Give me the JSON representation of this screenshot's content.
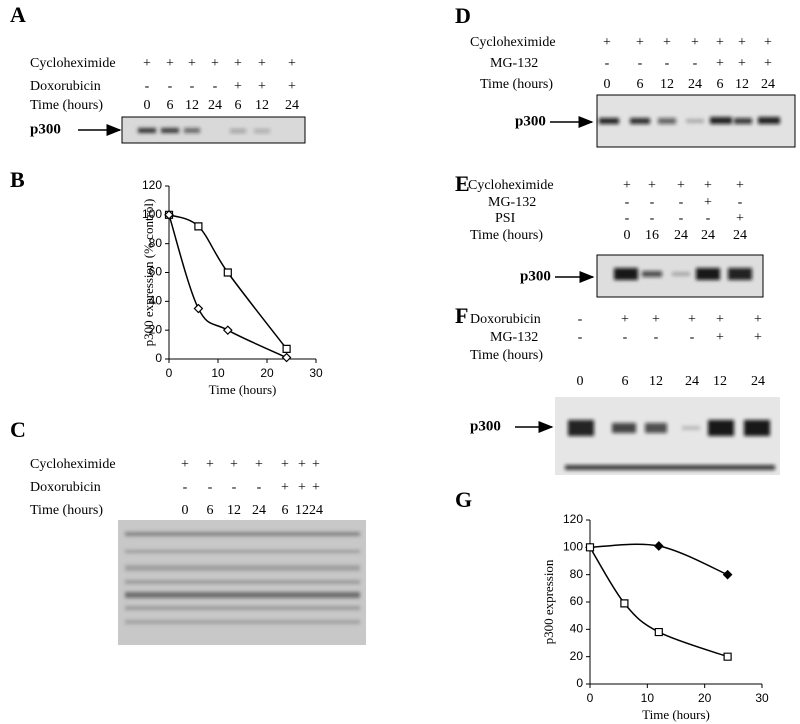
{
  "panel_labels": [
    "A",
    "B",
    "C",
    "D",
    "E",
    "F",
    "G"
  ],
  "panels": {
    "A": {
      "rows": [
        {
          "label": "Cycloheximide",
          "cells": [
            "+",
            "+",
            "+",
            "+",
            "+",
            "+",
            "+"
          ]
        },
        {
          "label": "Doxorubicin",
          "cells": [
            "-",
            "-",
            "-",
            "-",
            "+",
            "+",
            "+"
          ]
        },
        {
          "label": "Time (hours)",
          "cells": [
            0,
            6,
            12,
            24,
            6,
            12,
            24
          ]
        }
      ],
      "band_label": "p300"
    },
    "C": {
      "rows": [
        {
          "label": "Cycloheximide",
          "cells": [
            "+",
            "+",
            "+",
            "+",
            "+",
            "+",
            "+"
          ]
        },
        {
          "label": "Doxorubicin",
          "cells": [
            "-",
            "-",
            "-",
            "-",
            "+",
            "+",
            "+"
          ]
        },
        {
          "label": "Time (hours)",
          "cells": [
            0,
            6,
            12,
            24,
            6,
            12,
            24
          ]
        }
      ]
    },
    "D": {
      "rows": [
        {
          "label": "Cycloheximide",
          "cells": [
            "+",
            "+",
            "+",
            "+",
            "+",
            "+",
            "+"
          ]
        },
        {
          "label": "MG-132",
          "cells": [
            "-",
            "-",
            "-",
            "-",
            "+",
            "+",
            "+"
          ]
        },
        {
          "label": "Time (hours)",
          "cells": [
            0,
            6,
            12,
            24,
            6,
            12,
            24
          ]
        }
      ],
      "band_label": "p300"
    },
    "E": {
      "rows": [
        {
          "label": "Cycloheximide",
          "cells": [
            "+",
            "+",
            "+",
            "+",
            "+"
          ]
        },
        {
          "label": "MG-132",
          "cells": [
            "-",
            "-",
            "-",
            "+",
            "-"
          ]
        },
        {
          "label": "PSI",
          "cells": [
            "-",
            "-",
            "-",
            "-",
            "+"
          ]
        },
        {
          "label": "Time (hours)",
          "cells": [
            0,
            16,
            24,
            24,
            24
          ]
        }
      ],
      "band_label": "p300"
    },
    "F": {
      "rows": [
        {
          "label": "Doxorubicin",
          "cells": [
            "-",
            "+",
            "+",
            "+",
            "+",
            "+"
          ]
        },
        {
          "label": "MG-132",
          "cells": [
            "-",
            "-",
            "-",
            "-",
            "+",
            "+"
          ]
        },
        {
          "label": "Time (hours)",
          "cells": [
            0,
            6,
            12,
            24,
            12,
            24
          ]
        }
      ],
      "band_label": "p300"
    }
  },
  "chart_data": [
    {
      "type": "line",
      "panel": "B",
      "x_label": "Time (hours)",
      "y_label": "p300 expression (% control)",
      "xlim": [
        0,
        30
      ],
      "xticks": [
        0,
        10,
        20,
        30
      ],
      "ylim": [
        0,
        120
      ],
      "yticks": [
        0,
        20,
        40,
        60,
        80,
        100,
        120
      ],
      "series": [
        {
          "color": "#000000",
          "marker": "square",
          "marker_fill": "none",
          "x": [
            0,
            6,
            12,
            24
          ],
          "values": [
            100,
            92,
            60,
            7
          ]
        },
        {
          "color": "#000000",
          "marker": "diamond",
          "marker_fill": "none",
          "x": [
            0,
            6,
            12,
            24
          ],
          "values": [
            100,
            35,
            20,
            1
          ]
        }
      ]
    },
    {
      "type": "line",
      "panel": "G",
      "x_label": "Time (hours)",
      "y_label": "p300 expression",
      "xlim": [
        0,
        30
      ],
      "xticks": [
        0,
        10,
        20,
        30
      ],
      "ylim": [
        0,
        120
      ],
      "yticks": [
        0,
        20,
        40,
        60,
        80,
        100,
        120
      ],
      "series": [
        {
          "color": "#000000",
          "marker": "diamond",
          "marker_fill": "#000000",
          "x": [
            0,
            12,
            24
          ],
          "values": [
            100,
            101,
            80
          ]
        },
        {
          "color": "#000000",
          "marker": "square",
          "marker_fill": "none",
          "x": [
            0,
            6,
            12,
            24
          ],
          "values": [
            100,
            59,
            38,
            20
          ]
        }
      ]
    }
  ]
}
